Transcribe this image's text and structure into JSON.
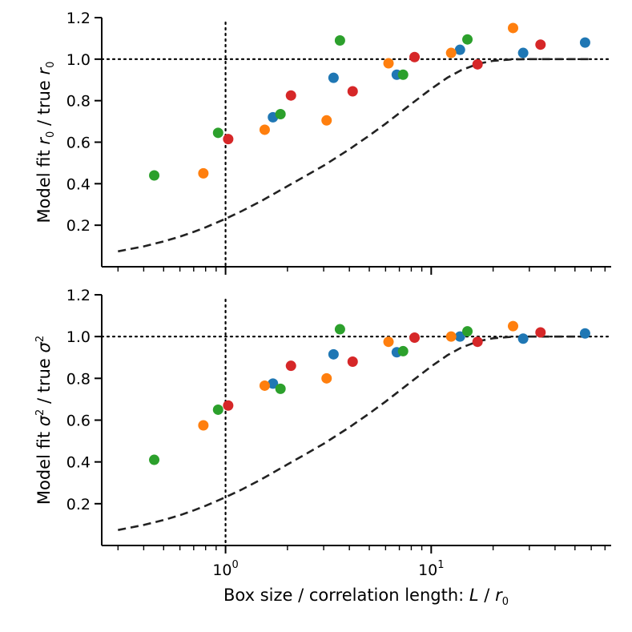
{
  "chart_data": [
    {
      "type": "scatter",
      "name": "r0-panel",
      "xscale": "log",
      "xlim": [
        0.25,
        75
      ],
      "ylim": [
        0.0,
        1.2
      ],
      "ylabel": "Model fit r_0 / true r_0",
      "ylabel_parts": [
        "Model fit ",
        "r",
        "0",
        " / true ",
        "r",
        "0"
      ],
      "yticks": [
        0.2,
        0.4,
        0.6,
        0.8,
        1.0,
        1.2
      ],
      "ytick_labels": [
        "0.2",
        "0.4",
        "0.6",
        "0.8",
        "1.0",
        "1.2"
      ],
      "hline": 1.0,
      "vline": 1.0,
      "series": [
        {
          "name": "blue",
          "color": "#1f77b4",
          "x": [
            1.7,
            3.35,
            6.8,
            13.8,
            28,
            56
          ],
          "y": [
            0.72,
            0.91,
            0.925,
            1.045,
            1.03,
            1.08
          ]
        },
        {
          "name": "orange",
          "color": "#ff7f0e",
          "x": [
            0.78,
            1.55,
            3.1,
            6.2,
            12.5,
            25
          ],
          "y": [
            0.45,
            0.66,
            0.705,
            0.98,
            1.03,
            1.15
          ]
        },
        {
          "name": "green",
          "color": "#2ca02c",
          "x": [
            0.45,
            0.92,
            1.85,
            3.6,
            7.3,
            15
          ],
          "y": [
            0.44,
            0.645,
            0.735,
            1.09,
            0.925,
            1.095
          ]
        },
        {
          "name": "red",
          "color": "#d62728",
          "x": [
            1.03,
            2.08,
            4.15,
            8.3,
            16.8,
            34
          ],
          "y": [
            0.615,
            0.825,
            0.845,
            1.01,
            0.975,
            1.07
          ]
        }
      ],
      "curve": {
        "color": "#222222",
        "x": [
          0.3,
          0.4,
          0.5,
          0.6,
          0.7,
          0.8,
          1.0,
          1.2,
          1.5,
          2.0,
          2.5,
          3.0,
          4.0,
          5.0,
          6.0,
          7.0,
          8.0,
          10.0,
          12.0,
          14.0,
          17.0,
          20.0,
          25.0,
          30.0,
          40.0,
          50.0,
          60.0
        ],
        "y": [
          0.074,
          0.098,
          0.122,
          0.145,
          0.168,
          0.19,
          0.231,
          0.268,
          0.318,
          0.388,
          0.442,
          0.487,
          0.566,
          0.632,
          0.689,
          0.74,
          0.784,
          0.857,
          0.911,
          0.947,
          0.978,
          0.992,
          0.999,
          1.0,
          1.0,
          1.0,
          1.0
        ]
      }
    },
    {
      "type": "scatter",
      "name": "sigma2-panel",
      "xscale": "log",
      "xlim": [
        0.25,
        75
      ],
      "ylim": [
        0.0,
        1.2
      ],
      "ylabel": "Model fit σ^2 / true σ^2",
      "ylabel_parts": [
        "Model fit ",
        "σ",
        "2",
        " / true ",
        "σ",
        "2"
      ],
      "yticks": [
        0.2,
        0.4,
        0.6,
        0.8,
        1.0,
        1.2
      ],
      "ytick_labels": [
        "0.2",
        "0.4",
        "0.6",
        "0.8",
        "1.0",
        "1.2"
      ],
      "xtick_labels": [
        "10",
        "0",
        "10",
        "1"
      ],
      "xlabel": "Box size / correlation length: L / r_0",
      "xlabel_parts": [
        "Box size / correlation length: ",
        "L",
        " / ",
        "r",
        "0"
      ],
      "hline": 1.0,
      "vline": 1.0,
      "series": [
        {
          "name": "blue",
          "color": "#1f77b4",
          "x": [
            1.7,
            3.35,
            6.8,
            13.8,
            28,
            56
          ],
          "y": [
            0.775,
            0.915,
            0.925,
            1.0,
            0.99,
            1.015
          ]
        },
        {
          "name": "orange",
          "color": "#ff7f0e",
          "x": [
            0.78,
            1.55,
            3.1,
            6.2,
            12.5,
            25
          ],
          "y": [
            0.575,
            0.765,
            0.8,
            0.975,
            1.0,
            1.05
          ]
        },
        {
          "name": "green",
          "color": "#2ca02c",
          "x": [
            0.45,
            0.92,
            1.85,
            3.6,
            7.3,
            15
          ],
          "y": [
            0.41,
            0.65,
            0.75,
            1.035,
            0.93,
            1.025
          ]
        },
        {
          "name": "red",
          "color": "#d62728",
          "x": [
            1.03,
            2.08,
            4.15,
            8.3,
            16.8,
            34
          ],
          "y": [
            0.67,
            0.86,
            0.88,
            0.995,
            0.975,
            1.02
          ]
        }
      ],
      "curve": {
        "color": "#222222",
        "x": [
          0.3,
          0.4,
          0.5,
          0.6,
          0.7,
          0.8,
          1.0,
          1.2,
          1.5,
          2.0,
          2.5,
          3.0,
          4.0,
          5.0,
          6.0,
          7.0,
          8.0,
          10.0,
          12.0,
          14.0,
          17.0,
          20.0,
          25.0,
          30.0,
          40.0,
          50.0,
          60.0
        ],
        "y": [
          0.074,
          0.098,
          0.122,
          0.145,
          0.168,
          0.19,
          0.231,
          0.268,
          0.318,
          0.388,
          0.442,
          0.487,
          0.566,
          0.632,
          0.689,
          0.74,
          0.784,
          0.857,
          0.911,
          0.947,
          0.978,
          0.992,
          0.999,
          1.0,
          1.0,
          1.0,
          1.0
        ]
      }
    }
  ]
}
